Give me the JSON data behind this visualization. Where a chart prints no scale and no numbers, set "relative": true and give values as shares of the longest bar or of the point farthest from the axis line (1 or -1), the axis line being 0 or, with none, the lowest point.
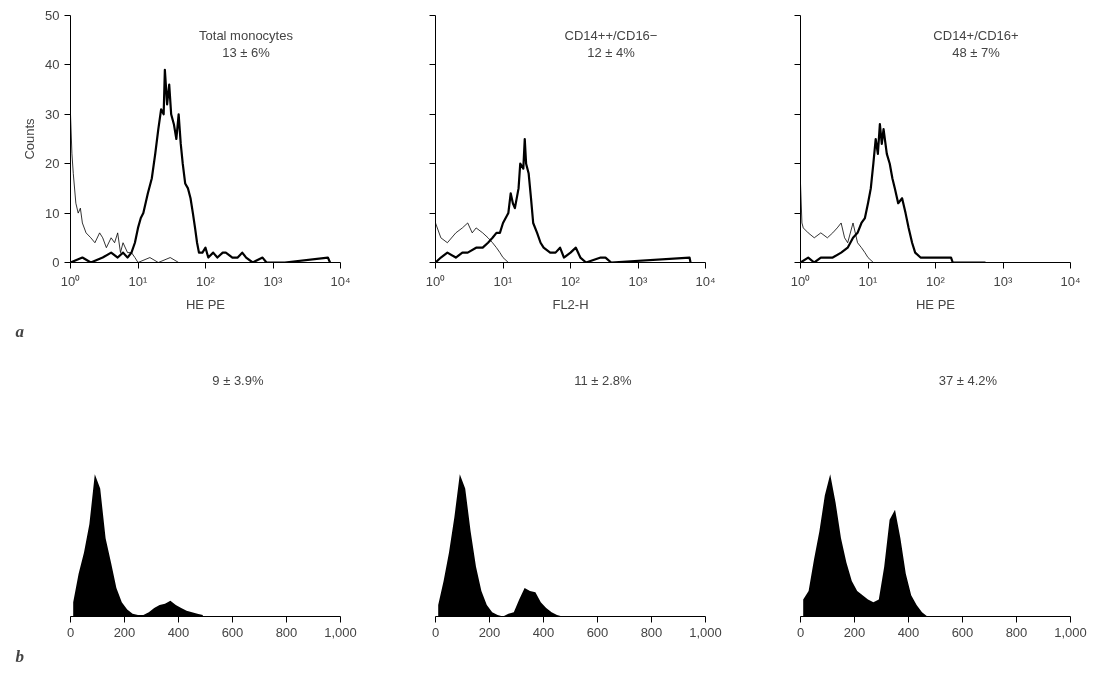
{
  "chart_data": [
    {
      "type": "line",
      "title": "a",
      "xlabel": "HE PE",
      "ylabel": "Counts",
      "log": "x",
      "xlim": [
        1,
        10000
      ],
      "xticks": [
        {
          "value": 1,
          "label": "10⁰"
        },
        {
          "value": 10,
          "label": "10¹"
        },
        {
          "value": 100,
          "label": "10²"
        },
        {
          "value": 1000,
          "label": "10³"
        },
        {
          "value": 10000,
          "label": "10⁴"
        }
      ],
      "ylim": [
        0,
        50
      ],
      "yticks": [
        0,
        10,
        20,
        30,
        40,
        50
      ],
      "grid": false,
      "annotations": [
        "Total monocytes",
        "13 ± 6%"
      ],
      "series": [
        {
          "color": "#000000",
          "x": [
            1.0,
            1.5,
            2,
            3,
            4,
            5,
            6,
            7,
            8,
            9,
            10,
            11,
            12,
            14,
            16,
            18,
            20,
            22,
            24,
            25,
            27,
            29,
            31,
            34,
            37,
            40,
            43,
            46,
            50,
            55,
            60,
            65,
            70,
            75,
            80,
            90,
            100,
            110,
            130,
            150,
            180,
            200,
            250,
            300,
            350,
            400,
            500,
            700,
            800,
            1000,
            1500,
            6500,
            7000
          ],
          "values": [
            0,
            1,
            0,
            1,
            2,
            1,
            2,
            1,
            2,
            4,
            7,
            9,
            10,
            14,
            17,
            22,
            27,
            31,
            30,
            39,
            32,
            36,
            30,
            28,
            25,
            30,
            24,
            20,
            16,
            15,
            13,
            10,
            7,
            4,
            2,
            2,
            3,
            1,
            2,
            1,
            2,
            2,
            1,
            1,
            2,
            1,
            0,
            1,
            0,
            0,
            0,
            1,
            0
          ]
        },
        {
          "color": "#000000",
          "x": [
            1.0,
            1.05,
            1.1,
            1.2,
            1.3,
            1.4,
            1.5,
            1.7,
            2,
            2.3,
            2.7,
            3,
            3.4,
            4,
            4.5,
            5,
            5.5,
            6,
            7,
            8,
            9,
            10,
            15,
            20,
            30,
            40,
            60
          ],
          "values": [
            30,
            22,
            18,
            12,
            10,
            11,
            8,
            6,
            5,
            4,
            6,
            5,
            3,
            5,
            4,
            6,
            2,
            4,
            2,
            2,
            1,
            0,
            1,
            0,
            1,
            0,
            0
          ]
        }
      ]
    },
    {
      "type": "line",
      "xlabel": "FL2-H",
      "log": "x",
      "xlim": [
        1,
        10000
      ],
      "xticks": [
        {
          "value": 1,
          "label": "10⁰"
        },
        {
          "value": 10,
          "label": "10¹"
        },
        {
          "value": 100,
          "label": "10²"
        },
        {
          "value": 1000,
          "label": "10³"
        },
        {
          "value": 10000,
          "label": "10⁴"
        }
      ],
      "ylim": [
        0,
        50
      ],
      "yticks": [
        0,
        10,
        20,
        30,
        40,
        50
      ],
      "tick_labels": "x",
      "grid": false,
      "annotations": [
        "CD14++/CD16−",
        "12 ± 4%"
      ],
      "series": [
        {
          "color": "#000000",
          "x": [
            1,
            1.2,
            1.5,
            2,
            2.5,
            3,
            4,
            5,
            6,
            7,
            8,
            9,
            10,
            12,
            13,
            14,
            15,
            17,
            18,
            20,
            21,
            22,
            24,
            26,
            28,
            32,
            36,
            40,
            50,
            60,
            70,
            80,
            100,
            120,
            140,
            170,
            280,
            330,
            400,
            5800,
            6000
          ],
          "values": [
            0,
            1,
            2,
            1,
            2,
            2,
            3,
            3,
            4,
            5,
            6,
            6,
            8,
            10,
            14,
            12,
            11,
            15,
            20,
            19,
            25,
            20,
            18,
            13,
            8,
            6,
            4,
            3,
            2,
            2,
            3,
            1,
            2,
            3,
            1,
            0,
            1,
            1,
            0,
            1,
            0
          ]
        },
        {
          "color": "#000000",
          "x": [
            1,
            1.2,
            1.5,
            2,
            2.5,
            3,
            3.5,
            4,
            5,
            6,
            7,
            8,
            9,
            10,
            12,
            20,
            30
          ],
          "values": [
            8,
            5,
            4,
            6,
            7,
            8,
            6,
            7,
            6,
            5,
            4,
            3,
            2,
            1,
            0,
            0,
            0
          ]
        }
      ]
    },
    {
      "type": "line",
      "xlabel": "HE PE",
      "log": "x",
      "xlim": [
        1,
        10000
      ],
      "xticks": [
        {
          "value": 1,
          "label": "10⁰"
        },
        {
          "value": 10,
          "label": "10¹"
        },
        {
          "value": 100,
          "label": "10²"
        },
        {
          "value": 1000,
          "label": "10³"
        },
        {
          "value": 10000,
          "label": "10⁴"
        }
      ],
      "ylim": [
        0,
        50
      ],
      "yticks": [
        0,
        10,
        20,
        30,
        40,
        50
      ],
      "tick_labels": "x",
      "grid": false,
      "annotations": [
        "CD14+/CD16+",
        "48 ± 7%"
      ],
      "series": [
        {
          "color": "#000000",
          "x": [
            1,
            1.3,
            1.6,
            2,
            2.5,
            3,
            4,
            5,
            6,
            7,
            8,
            9,
            10,
            11,
            12,
            13,
            14,
            15,
            16,
            17,
            19,
            21,
            23,
            25,
            28,
            32,
            36,
            40,
            45,
            50,
            60,
            80,
            100,
            130,
            170,
            180,
            550
          ],
          "values": [
            0,
            1,
            0,
            1,
            1,
            1,
            2,
            3,
            5,
            6,
            8,
            9,
            12,
            15,
            20,
            25,
            22,
            28,
            24,
            27,
            22,
            20,
            17,
            15,
            12,
            13,
            10,
            7,
            4,
            2,
            1,
            1,
            1,
            1,
            1,
            0,
            0
          ]
        },
        {
          "color": "#000000",
          "x": [
            1,
            1.05,
            1.1,
            1.3,
            1.6,
            2,
            2.5,
            3,
            3.5,
            4,
            4.5,
            5,
            6,
            7,
            8,
            9,
            10,
            12,
            20,
            550
          ],
          "values": [
            16,
            8,
            7,
            6,
            5,
            6,
            5,
            6,
            7,
            8,
            5,
            4,
            8,
            4,
            3,
            2,
            1,
            0,
            0,
            0
          ]
        }
      ]
    },
    {
      "type": "area",
      "title": "b",
      "relative": true,
      "xlim": [
        0,
        1000
      ],
      "xticks": [
        0,
        200,
        400,
        600,
        800,
        {
          "value": 1000,
          "label": "1,000"
        }
      ],
      "grid": false,
      "color": "#000000",
      "annotations": [
        "9 ± 3.9%"
      ],
      "x": [
        10,
        30,
        50,
        70,
        90,
        110,
        130,
        150,
        170,
        190,
        210,
        230,
        250,
        270,
        290,
        310,
        330,
        350,
        370,
        390,
        410,
        430,
        450,
        470,
        490
      ],
      "values": [
        0.1,
        0.3,
        0.45,
        0.65,
        1,
        0.9,
        0.55,
        0.38,
        0.2,
        0.1,
        0.05,
        0.02,
        0.01,
        0.01,
        0.03,
        0.06,
        0.08,
        0.09,
        0.11,
        0.08,
        0.06,
        0.04,
        0.03,
        0.02,
        0.01
      ]
    },
    {
      "type": "area",
      "relative": true,
      "xlim": [
        0,
        1000
      ],
      "xticks": [
        0,
        200,
        400,
        600,
        800,
        {
          "value": 1000,
          "label": "1,000"
        }
      ],
      "grid": false,
      "color": "#000000",
      "annotations": [
        "11 ± 2.8%"
      ],
      "x": [
        10,
        30,
        50,
        70,
        90,
        110,
        130,
        150,
        170,
        190,
        210,
        230,
        250,
        270,
        290,
        310,
        330,
        350,
        370,
        390,
        410,
        430,
        450,
        470,
        490
      ],
      "values": [
        0.08,
        0.25,
        0.45,
        0.7,
        1,
        0.9,
        0.6,
        0.35,
        0.18,
        0.08,
        0.03,
        0.01,
        0,
        0.02,
        0.03,
        0.12,
        0.2,
        0.18,
        0.17,
        0.1,
        0.06,
        0.03,
        0.01,
        0,
        0
      ]
    },
    {
      "type": "area",
      "relative": true,
      "xlim": [
        0,
        1000
      ],
      "xticks": [
        0,
        200,
        400,
        600,
        800,
        {
          "value": 1000,
          "label": "1,000"
        }
      ],
      "grid": false,
      "color": "#000000",
      "annotations": [
        "37 ± 4.2%"
      ],
      "x": [
        10,
        30,
        50,
        70,
        90,
        110,
        130,
        150,
        170,
        190,
        210,
        230,
        250,
        270,
        290,
        310,
        330,
        350,
        370,
        390,
        410,
        430,
        450,
        470,
        490
      ],
      "values": [
        0.12,
        0.18,
        0.4,
        0.6,
        0.85,
        1,
        0.8,
        0.55,
        0.38,
        0.25,
        0.18,
        0.15,
        0.12,
        0.1,
        0.12,
        0.35,
        0.68,
        0.75,
        0.55,
        0.3,
        0.15,
        0.08,
        0.03,
        0,
        0
      ]
    }
  ]
}
